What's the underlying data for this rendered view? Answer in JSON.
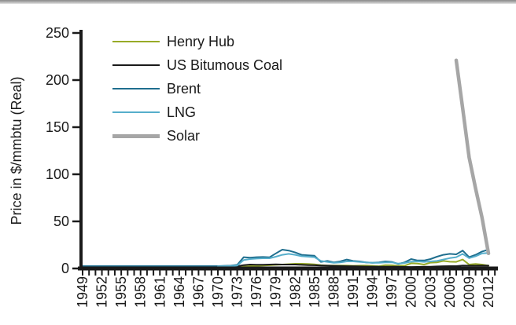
{
  "window": {
    "top_border_color": "#8a8a8a",
    "background": "#ffffff"
  },
  "chart_data": {
    "type": "line",
    "title": "",
    "xlabel": "",
    "ylabel": "Price in $/mmbtu (Real)",
    "ylim": [
      0,
      250
    ],
    "y_ticks": [
      "0",
      "50",
      "100",
      "150",
      "200",
      "250"
    ],
    "x_range": [
      1949,
      2013
    ],
    "x_labeled_years": [
      "1949",
      "1952",
      "1955",
      "1958",
      "1961",
      "1964",
      "1967",
      "1970",
      "1973",
      "1976",
      "1979",
      "1982",
      "1985",
      "1988",
      "1991",
      "1994",
      "1997",
      "2000",
      "2003",
      "2006",
      "2009",
      "2012"
    ],
    "x_label_step": 3,
    "minor_ticks_every_year": true,
    "grid": false,
    "legend_position": "top-left-inside",
    "axis_color": "#1a1a1a",
    "years": [
      1949,
      1950,
      1951,
      1952,
      1953,
      1954,
      1955,
      1956,
      1957,
      1958,
      1959,
      1960,
      1961,
      1962,
      1963,
      1964,
      1965,
      1966,
      1967,
      1968,
      1969,
      1970,
      1971,
      1972,
      1973,
      1974,
      1975,
      1976,
      1977,
      1978,
      1979,
      1980,
      1981,
      1982,
      1983,
      1984,
      1985,
      1986,
      1987,
      1988,
      1989,
      1990,
      1991,
      1992,
      1993,
      1994,
      1995,
      1996,
      1997,
      1998,
      1999,
      2000,
      2001,
      2002,
      2003,
      2004,
      2005,
      2006,
      2007,
      2008,
      2009,
      2010,
      2011,
      2012
    ],
    "series": [
      {
        "name": "Henry Hub",
        "color": "#98ab27",
        "stroke_width": 2,
        "values": [
          1.5,
          1.5,
          1.5,
          1.5,
          1.5,
          1.5,
          1.5,
          1.5,
          1.5,
          1.5,
          1.5,
          1.5,
          1.5,
          1.5,
          1.5,
          1.5,
          1.5,
          1.5,
          1.5,
          1.5,
          1.5,
          1.6,
          1.7,
          1.8,
          1.9,
          2.2,
          2.5,
          2.8,
          3.2,
          3.4,
          3.8,
          4.2,
          4.6,
          5,
          5,
          4.8,
          4.4,
          3.6,
          3.2,
          3.2,
          3.1,
          3.2,
          2.8,
          3,
          3.2,
          2.8,
          2.4,
          3.6,
          3.4,
          2.8,
          3,
          5.5,
          5.2,
          4.2,
          6.2,
          6.4,
          8,
          7.2,
          7,
          9.5,
          4.2,
          4.8,
          4.2,
          3
        ]
      },
      {
        "name": "US Bitumous Coal",
        "color": "#1a1a1a",
        "stroke_width": 2,
        "values": [
          1.8,
          1.8,
          1.8,
          1.8,
          1.8,
          1.8,
          1.8,
          1.8,
          1.8,
          1.8,
          1.8,
          1.8,
          1.8,
          1.8,
          1.8,
          1.8,
          1.8,
          1.8,
          1.8,
          1.8,
          1.8,
          2,
          2.2,
          2.2,
          2.4,
          3.6,
          4.2,
          4,
          4,
          4.2,
          4.4,
          4.2,
          4.2,
          4.2,
          3.8,
          3.6,
          3.4,
          3.2,
          3,
          2.8,
          2.6,
          2.4,
          2.4,
          2.2,
          2,
          2,
          1.9,
          1.8,
          1.8,
          1.8,
          1.7,
          1.6,
          1.7,
          1.8,
          1.8,
          2.2,
          2.4,
          2.5,
          2.5,
          3.2,
          3,
          3,
          3.2,
          3
        ]
      },
      {
        "name": "Brent",
        "color": "#1f6e8e",
        "stroke_width": 2,
        "values": [
          2.5,
          2.5,
          2.5,
          2.5,
          2.5,
          2.5,
          2.5,
          2.5,
          2.5,
          2.5,
          2.5,
          2.5,
          2.5,
          2.5,
          2.5,
          2.5,
          2.5,
          2.5,
          2.5,
          2.5,
          2.5,
          2.5,
          2.8,
          3,
          3.8,
          12,
          11.5,
          12,
          12.2,
          11.8,
          16,
          20,
          19,
          17,
          14.5,
          14,
          13.5,
          7,
          8,
          6.5,
          7.5,
          9.5,
          8,
          7.5,
          6.5,
          6,
          6.5,
          7.5,
          7,
          4.8,
          6.5,
          10,
          8.5,
          8.5,
          10,
          12.5,
          14.5,
          15.5,
          15,
          19,
          12,
          14.5,
          18,
          20
        ]
      },
      {
        "name": "LNG",
        "color": "#56aecb",
        "stroke_width": 2,
        "values": [
          null,
          null,
          null,
          null,
          null,
          null,
          null,
          null,
          null,
          null,
          null,
          null,
          null,
          null,
          null,
          null,
          null,
          null,
          null,
          null,
          null,
          2.2,
          2.4,
          2.6,
          3.2,
          9,
          10,
          10.5,
          10.8,
          10.8,
          12.5,
          14.5,
          15.5,
          14.5,
          13,
          12.5,
          12,
          8,
          7,
          6,
          6.5,
          7.5,
          7.5,
          7,
          6.5,
          6,
          6,
          6.5,
          6.5,
          5.2,
          5.8,
          7.2,
          7.5,
          7,
          7.5,
          8,
          9.5,
          11,
          12,
          15.5,
          11,
          13,
          16,
          16.5
        ]
      },
      {
        "name": "Solar",
        "color": "#a6a6a6",
        "stroke_width": 4.5,
        "values": [
          null,
          null,
          null,
          null,
          null,
          null,
          null,
          null,
          null,
          null,
          null,
          null,
          null,
          null,
          null,
          null,
          null,
          null,
          null,
          null,
          null,
          null,
          null,
          null,
          null,
          null,
          null,
          null,
          null,
          null,
          null,
          null,
          null,
          null,
          null,
          null,
          null,
          null,
          null,
          null,
          null,
          null,
          null,
          null,
          null,
          null,
          null,
          null,
          null,
          null,
          null,
          null,
          null,
          null,
          null,
          null,
          null,
          null,
          221,
          170,
          118,
          85,
          54,
          16
        ]
      }
    ]
  }
}
